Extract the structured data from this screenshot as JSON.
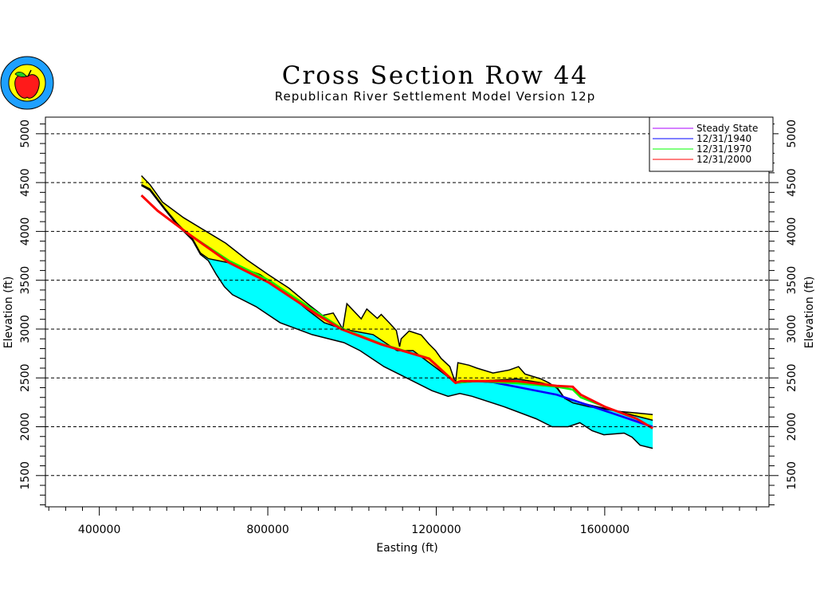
{
  "chart_data": {
    "type": "area",
    "title": "Cross Section Row 44",
    "subtitle": "Republican River Settlement Model Version 12p",
    "xlabel": "Easting (ft)",
    "ylabel": "Elevation (ft)",
    "xlim": [
      272000,
      1990000
    ],
    "ylim": [
      1180,
      5170
    ],
    "x_major_ticks": [
      400000,
      800000,
      1200000,
      1600000
    ],
    "x_tick_labels": [
      "400000",
      "800000",
      "1200000",
      "1600000"
    ],
    "y_major_ticks": [
      1500,
      2000,
      2500,
      3000,
      3500,
      4000,
      4500,
      5000
    ],
    "y_tick_labels": [
      "1500",
      "2000",
      "2500",
      "3000",
      "3500",
      "4000",
      "4500",
      "5000"
    ],
    "grid": "horizontal dashed at major y ticks",
    "legend_position": "top-right",
    "colors": {
      "land_band": "#ffff00",
      "aquifer_band": "#00ffff",
      "outline": "#000000"
    },
    "land_surface": [
      [
        500000,
        4570
      ],
      [
        520000,
        4480
      ],
      [
        550000,
        4300
      ],
      [
        600000,
        4140
      ],
      [
        650000,
        4010
      ],
      [
        700000,
        3880
      ],
      [
        750000,
        3710
      ],
      [
        800000,
        3560
      ],
      [
        850000,
        3420
      ],
      [
        900000,
        3240
      ],
      [
        930000,
        3140
      ],
      [
        955500,
        3164
      ],
      [
        978000,
        3000
      ],
      [
        987800,
        3260
      ],
      [
        1021900,
        3105
      ],
      [
        1035000,
        3205
      ],
      [
        1060000,
        3110
      ],
      [
        1069300,
        3150
      ],
      [
        1088300,
        3065
      ],
      [
        1105300,
        2985
      ],
      [
        1113000,
        2820
      ],
      [
        1116700,
        2900
      ],
      [
        1135600,
        2980
      ],
      [
        1164100,
        2940
      ],
      [
        1183000,
        2845
      ],
      [
        1198200,
        2780
      ],
      [
        1211500,
        2700
      ],
      [
        1232300,
        2615
      ],
      [
        1245600,
        2450
      ],
      [
        1251300,
        2655
      ],
      [
        1277800,
        2630
      ],
      [
        1296800,
        2600
      ],
      [
        1334700,
        2550
      ],
      [
        1372600,
        2580
      ],
      [
        1395400,
        2615
      ],
      [
        1410600,
        2540
      ],
      [
        1448500,
        2490
      ],
      [
        1467500,
        2450
      ],
      [
        1486400,
        2395
      ],
      [
        1505400,
        2290
      ],
      [
        1524300,
        2245
      ],
      [
        1562200,
        2205
      ],
      [
        1600000,
        2180
      ],
      [
        1638100,
        2155
      ],
      [
        1676000,
        2140
      ],
      [
        1714000,
        2125
      ]
    ],
    "aquifer_top": [
      [
        500000,
        4480
      ],
      [
        520000,
        4435
      ],
      [
        555000,
        4238
      ],
      [
        583000,
        4090
      ],
      [
        621000,
        3926
      ],
      [
        640000,
        3779
      ],
      [
        659000,
        3721
      ],
      [
        706000,
        3680
      ],
      [
        782000,
        3557
      ],
      [
        839000,
        3393
      ],
      [
        896000,
        3190
      ],
      [
        934000,
        3066
      ],
      [
        978000,
        3000
      ],
      [
        1050000,
        2943
      ],
      [
        1107000,
        2779
      ],
      [
        1145000,
        2779
      ],
      [
        1183000,
        2656
      ],
      [
        1221000,
        2533
      ],
      [
        1245600,
        2450
      ],
      [
        1259000,
        2467
      ],
      [
        1297000,
        2467
      ],
      [
        1335000,
        2475
      ],
      [
        1392000,
        2490
      ],
      [
        1449000,
        2450
      ],
      [
        1486000,
        2410
      ],
      [
        1505000,
        2290
      ],
      [
        1562000,
        2225
      ],
      [
        1638000,
        2150
      ],
      [
        1714000,
        2066
      ]
    ],
    "bedrock": [
      [
        500000,
        4470
      ],
      [
        520000,
        4420
      ],
      [
        555000,
        4225
      ],
      [
        583000,
        4075
      ],
      [
        621000,
        3910
      ],
      [
        640000,
        3765
      ],
      [
        659000,
        3700
      ],
      [
        678000,
        3557
      ],
      [
        697000,
        3434
      ],
      [
        716000,
        3352
      ],
      [
        772000,
        3230
      ],
      [
        829000,
        3066
      ],
      [
        905000,
        2943
      ],
      [
        981000,
        2861
      ],
      [
        1019000,
        2779
      ],
      [
        1076000,
        2615
      ],
      [
        1133000,
        2492
      ],
      [
        1190000,
        2369
      ],
      [
        1228000,
        2312
      ],
      [
        1256000,
        2340
      ],
      [
        1285000,
        2312
      ],
      [
        1361000,
        2205
      ],
      [
        1437000,
        2082
      ],
      [
        1475000,
        2000
      ],
      [
        1513000,
        2000
      ],
      [
        1541000,
        2041
      ],
      [
        1570000,
        1959
      ],
      [
        1598000,
        1918
      ],
      [
        1646000,
        1935
      ],
      [
        1665000,
        1893
      ],
      [
        1684000,
        1811
      ],
      [
        1714000,
        1779
      ]
    ],
    "series": [
      {
        "name": "Steady State",
        "color": "#aa00ff",
        "values": [
          [
            500000,
            4369
          ],
          [
            538000,
            4213
          ],
          [
            614000,
            3967
          ],
          [
            708000,
            3680
          ],
          [
            803000,
            3475
          ],
          [
            917000,
            3148
          ],
          [
            974000,
            3000
          ],
          [
            1069000,
            2844
          ],
          [
            1183000,
            2697
          ],
          [
            1245600,
            2450
          ],
          [
            1297000,
            2467
          ],
          [
            1335000,
            2455
          ],
          [
            1486000,
            2328
          ],
          [
            1600000,
            2164
          ],
          [
            1714000,
            1994
          ]
        ]
      },
      {
        "name": "12/31/1940",
        "color": "#0000ff",
        "values": [
          [
            500000,
            4369
          ],
          [
            538000,
            4213
          ],
          [
            614000,
            3967
          ],
          [
            708000,
            3680
          ],
          [
            803000,
            3475
          ],
          [
            917000,
            3148
          ],
          [
            974000,
            3000
          ],
          [
            1069000,
            2844
          ],
          [
            1183000,
            2697
          ],
          [
            1245600,
            2450
          ],
          [
            1297000,
            2467
          ],
          [
            1335000,
            2455
          ],
          [
            1486000,
            2328
          ],
          [
            1600000,
            2164
          ],
          [
            1714000,
            2000
          ]
        ]
      },
      {
        "name": "12/31/1970",
        "color": "#00ff00",
        "values": [
          [
            500000,
            4369
          ],
          [
            538000,
            4213
          ],
          [
            614000,
            3967
          ],
          [
            708000,
            3700
          ],
          [
            803000,
            3500
          ],
          [
            917000,
            3170
          ],
          [
            974000,
            3010
          ],
          [
            1069000,
            2850
          ],
          [
            1183000,
            2700
          ],
          [
            1245600,
            2450
          ],
          [
            1297000,
            2467
          ],
          [
            1392000,
            2445
          ],
          [
            1486000,
            2410
          ],
          [
            1524000,
            2380
          ],
          [
            1543000,
            2300
          ],
          [
            1600000,
            2205
          ],
          [
            1676000,
            2082
          ],
          [
            1714000,
            1984
          ]
        ]
      },
      {
        "name": "12/31/2000",
        "color": "#ff0000",
        "values": [
          [
            500000,
            4369
          ],
          [
            538000,
            4213
          ],
          [
            614000,
            3967
          ],
          [
            708000,
            3680
          ],
          [
            803000,
            3475
          ],
          [
            917000,
            3148
          ],
          [
            974000,
            3000
          ],
          [
            1069000,
            2844
          ],
          [
            1183000,
            2697
          ],
          [
            1245600,
            2450
          ],
          [
            1259000,
            2467
          ],
          [
            1392000,
            2467
          ],
          [
            1486000,
            2418
          ],
          [
            1524000,
            2410
          ],
          [
            1543000,
            2328
          ],
          [
            1600000,
            2205
          ],
          [
            1676000,
            2082
          ],
          [
            1714000,
            1984
          ]
        ]
      }
    ]
  }
}
